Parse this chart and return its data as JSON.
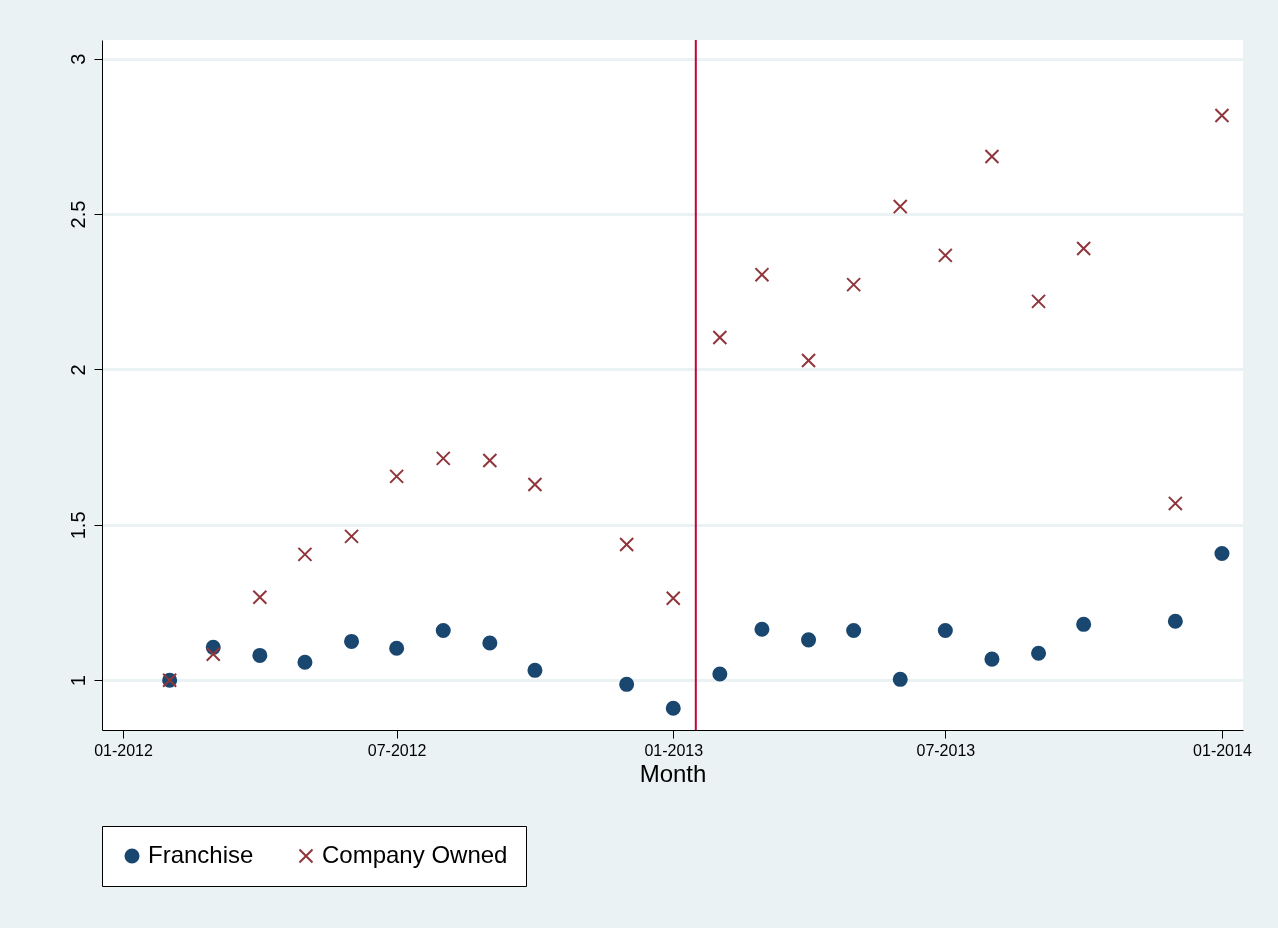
{
  "chart_data": {
    "type": "scatter",
    "xlabel": "Month",
    "x": [
      "2012-02",
      "2012-03",
      "2012-04",
      "2012-05",
      "2012-06",
      "2012-07",
      "2012-08",
      "2012-09",
      "2012-10",
      "2012-12",
      "2013-01",
      "2013-02",
      "2013-03",
      "2013-04",
      "2013-05",
      "2013-06",
      "2013-07",
      "2013-08",
      "2013-09",
      "2013-10",
      "2013-12",
      "2014-01"
    ],
    "series": [
      {
        "name": "Franchise",
        "color": "#1a476f",
        "marker": "circle",
        "values": [
          1.0,
          1.106,
          1.08,
          1.058,
          1.125,
          1.103,
          1.16,
          1.12,
          1.032,
          0.987,
          0.91,
          1.02,
          1.164,
          1.13,
          1.16,
          1.003,
          1.16,
          1.068,
          1.087,
          1.18,
          1.19,
          1.408
        ]
      },
      {
        "name": "Company Owned",
        "color": "#90353b",
        "marker": "cross",
        "values": [
          1.0,
          1.084,
          1.267,
          1.405,
          1.463,
          1.656,
          1.714,
          1.707,
          1.63,
          1.437,
          1.264,
          2.103,
          2.305,
          2.029,
          2.273,
          2.524,
          2.367,
          2.685,
          2.219,
          2.389,
          1.569,
          2.817
        ]
      }
    ],
    "xlim": [
      "2011-12-18",
      "2014-01-15"
    ],
    "xticks": [
      {
        "value": "2012-01",
        "label": "01-2012"
      },
      {
        "value": "2012-07",
        "label": "07-2012"
      },
      {
        "value": "2013-01",
        "label": "01-2013"
      },
      {
        "value": "2013-07",
        "label": "07-2013"
      },
      {
        "value": "2014-01",
        "label": "01-2014"
      }
    ],
    "ylim": [
      0.84,
      3.06
    ],
    "yticks": [
      1,
      1.5,
      2,
      2.5,
      3
    ],
    "ref_lines": [
      {
        "axis": "x",
        "value": "2013-01-16",
        "color": "#c10534"
      }
    ],
    "grid": "y",
    "legend": "bottom"
  }
}
